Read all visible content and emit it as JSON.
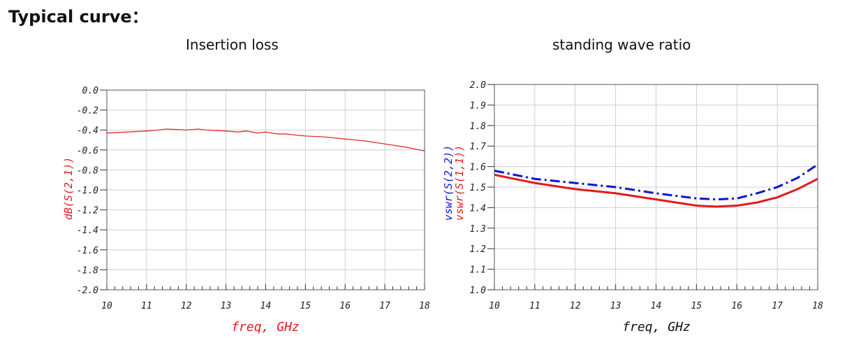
{
  "heading": "Typical curve：",
  "chart_data": [
    {
      "type": "line",
      "title": "Insertion loss",
      "xlabel": "freq, GHz",
      "ylabel": "dB(S(2,1))",
      "xlim": [
        10,
        18
      ],
      "ylim": [
        -2.0,
        0.0
      ],
      "xticks": [
        "10",
        "11",
        "12",
        "13",
        "14",
        "15",
        "16",
        "17",
        "18"
      ],
      "yticks": [
        "0.0",
        "-0.2",
        "-0.4",
        "-0.6",
        "-0.8",
        "-1.0",
        "-1.2",
        "-1.4",
        "-1.6",
        "-1.8",
        "-2.0"
      ],
      "grid": true,
      "series": [
        {
          "name": "dB(S(2,1))",
          "color": "#e31a1c",
          "x": [
            10.0,
            10.5,
            11.0,
            11.3,
            11.5,
            12.0,
            12.3,
            12.5,
            13.0,
            13.3,
            13.5,
            13.8,
            14.0,
            14.3,
            14.5,
            15.0,
            15.5,
            16.0,
            16.5,
            17.0,
            17.5,
            18.0
          ],
          "y": [
            -0.43,
            -0.42,
            -0.41,
            -0.4,
            -0.39,
            -0.4,
            -0.39,
            -0.4,
            -0.41,
            -0.42,
            -0.41,
            -0.43,
            -0.42,
            -0.44,
            -0.44,
            -0.46,
            -0.47,
            -0.49,
            -0.51,
            -0.54,
            -0.57,
            -0.61
          ]
        }
      ]
    },
    {
      "type": "line",
      "title": "standing wave ratio",
      "xlabel": "freq, GHz",
      "ylabel": "vswr(S(2,2)) vswr(S(1,1))",
      "xlim": [
        10,
        18
      ],
      "ylim": [
        1.0,
        2.0
      ],
      "xticks": [
        "10",
        "11",
        "12",
        "13",
        "14",
        "15",
        "16",
        "17",
        "18"
      ],
      "yticks": [
        "2.0",
        "1.9",
        "1.8",
        "1.7",
        "1.6",
        "1.5",
        "1.4",
        "1.3",
        "1.2",
        "1.1",
        "1.0"
      ],
      "grid": true,
      "series": [
        {
          "name": "vswr(S(2,2))",
          "color": "#0a14d8",
          "dashed": true,
          "x": [
            10,
            11,
            12,
            13,
            14,
            15,
            15.5,
            16,
            16.5,
            17,
            17.5,
            18
          ],
          "y": [
            1.58,
            1.54,
            1.52,
            1.5,
            1.47,
            1.445,
            1.44,
            1.445,
            1.47,
            1.5,
            1.545,
            1.61
          ]
        },
        {
          "name": "vswr(S(1,1))",
          "color": "#e31a1c",
          "x": [
            10,
            11,
            12,
            13,
            14,
            15,
            15.5,
            16,
            16.5,
            17,
            17.5,
            18
          ],
          "y": [
            1.56,
            1.52,
            1.49,
            1.47,
            1.44,
            1.41,
            1.405,
            1.41,
            1.425,
            1.45,
            1.49,
            1.54
          ]
        }
      ]
    }
  ]
}
